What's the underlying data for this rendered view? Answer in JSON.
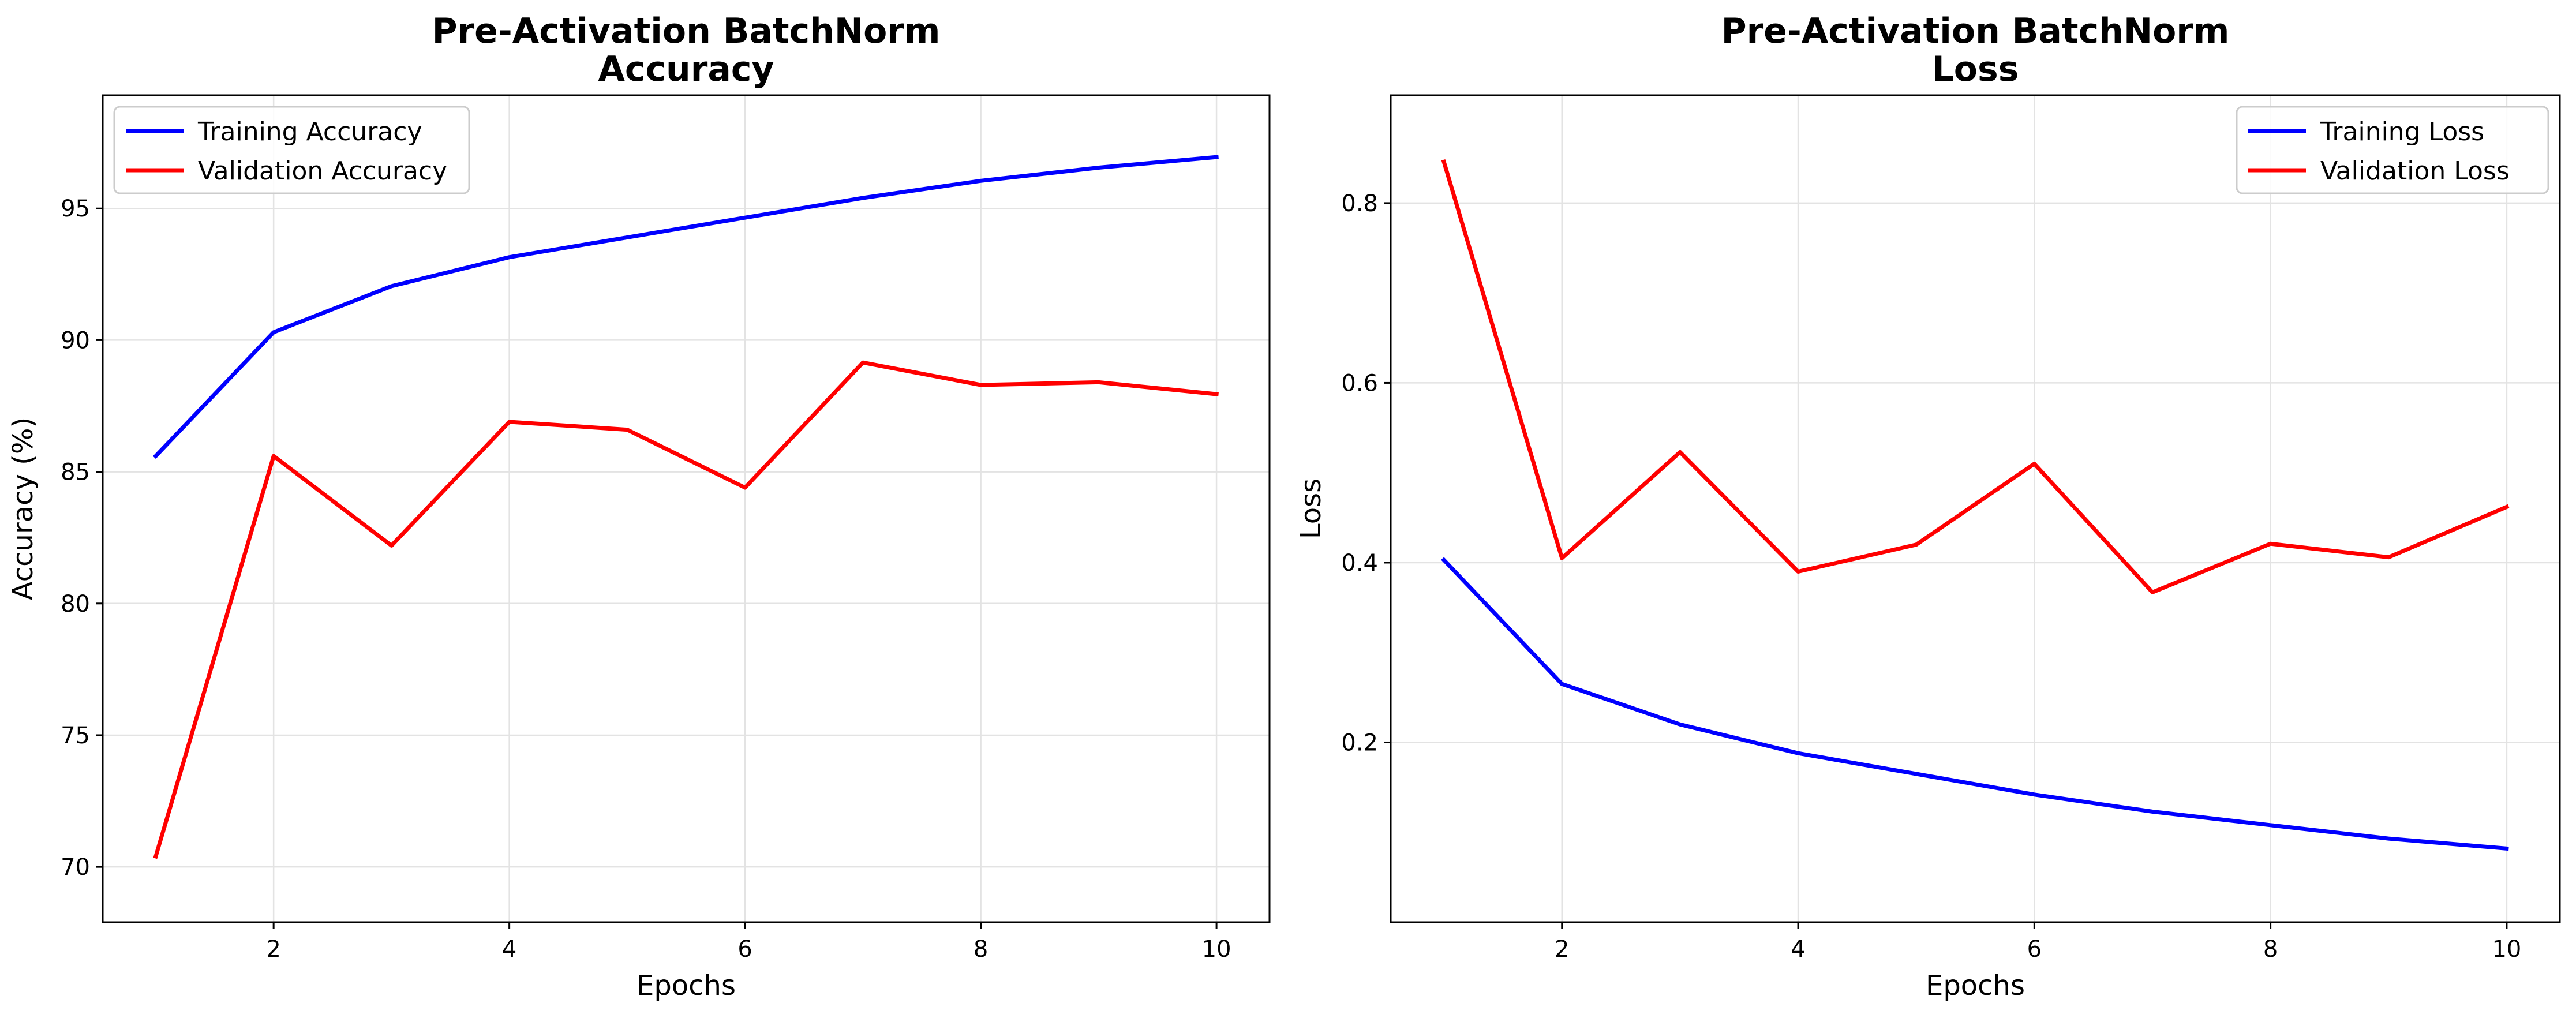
{
  "chart_data": [
    {
      "type": "line",
      "title": "Pre-Activation BatchNorm\nAccuracy",
      "xlabel": "Epochs",
      "ylabel": "Accuracy (%)",
      "xlim": [
        0.55,
        10.45
      ],
      "ylim": [
        67.9,
        99.3
      ],
      "xticks": [
        2,
        4,
        6,
        8,
        10
      ],
      "yticks": [
        70,
        75,
        80,
        85,
        90,
        95
      ],
      "grid": true,
      "legend_position": "top-left",
      "x": [
        1,
        2,
        3,
        4,
        5,
        6,
        7,
        8,
        9,
        10
      ],
      "series": [
        {
          "name": "Training Accuracy",
          "color": "#0000ff",
          "values": [
            85.6,
            90.3,
            92.05,
            93.15,
            93.9,
            94.65,
            95.4,
            96.05,
            96.55,
            96.95
          ]
        },
        {
          "name": "Validation Accuracy",
          "color": "#ff0000",
          "values": [
            70.4,
            85.6,
            82.2,
            86.9,
            86.6,
            84.4,
            89.15,
            88.3,
            88.4,
            87.95
          ]
        }
      ]
    },
    {
      "type": "line",
      "title": "Pre-Activation BatchNorm\nLoss",
      "xlabel": "Epochs",
      "ylabel": "Loss",
      "xlim": [
        0.55,
        10.45
      ],
      "ylim": [
        0.0,
        0.92
      ],
      "xticks": [
        2,
        4,
        6,
        8,
        10
      ],
      "yticks": [
        0.2,
        0.4,
        0.6,
        0.8
      ],
      "grid": true,
      "legend_position": "top-right",
      "x": [
        1,
        2,
        3,
        4,
        5,
        6,
        7,
        8,
        9,
        10
      ],
      "series": [
        {
          "name": "Training Loss",
          "color": "#0000ff",
          "values": [
            0.403,
            0.265,
            0.22,
            0.188,
            0.165,
            0.142,
            0.123,
            0.108,
            0.093,
            0.082
          ]
        },
        {
          "name": "Validation Loss",
          "color": "#ff0000",
          "values": [
            0.846,
            0.405,
            0.523,
            0.39,
            0.42,
            0.51,
            0.367,
            0.421,
            0.406,
            0.462
          ]
        }
      ]
    }
  ]
}
